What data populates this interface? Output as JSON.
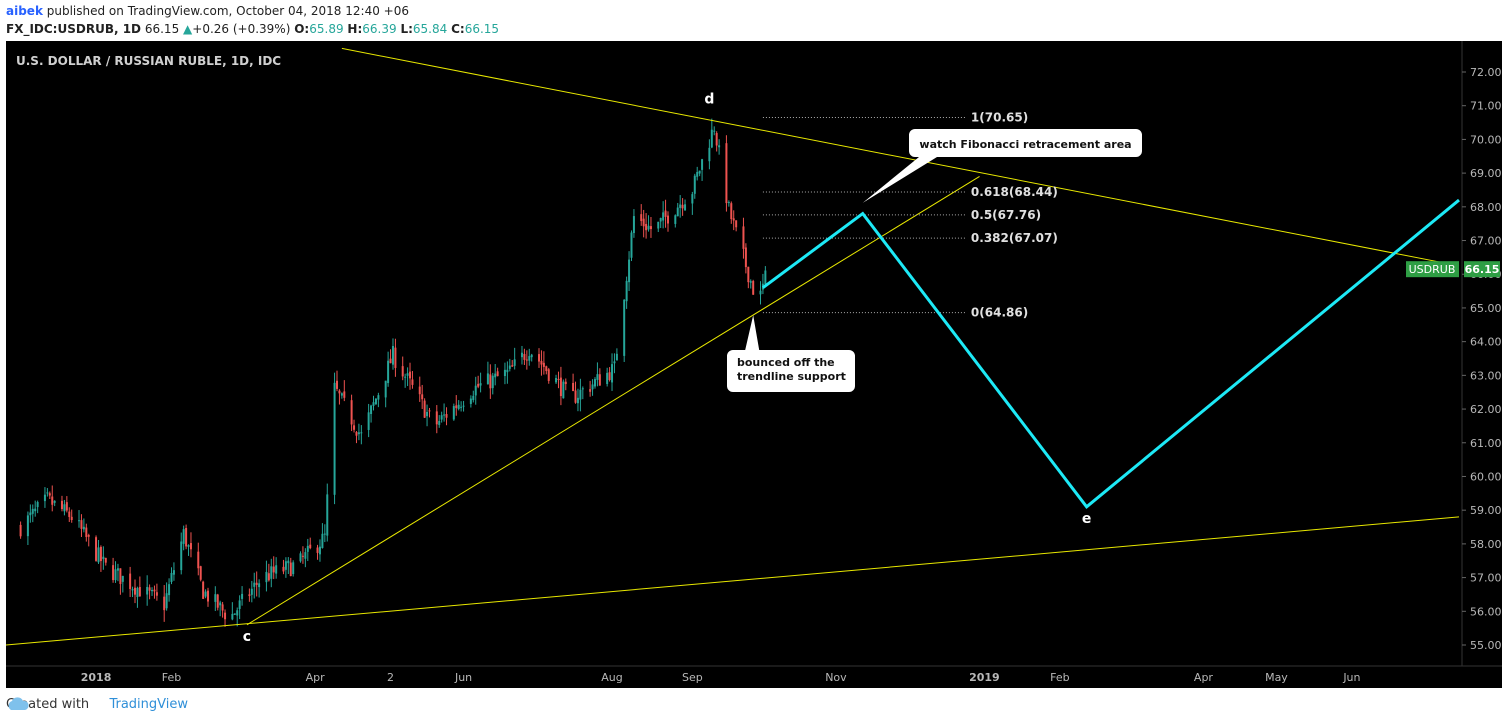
{
  "header": {
    "user": "aibek",
    "published": "published on TradingView.com, October 04, 2018 12:40 +06",
    "symbol": "FX_IDC:USDRUB, 1D",
    "last": "66.15",
    "change": "+0.26 (+0.39%)",
    "o_label": "O:",
    "o_value": "65.89",
    "h_label": "H:",
    "h_value": "66.39",
    "l_label": "L:",
    "l_value": "65.84",
    "c_label": "C:",
    "c_value": "66.15"
  },
  "footer": {
    "created": "Created with",
    "brand": "TradingView"
  },
  "colors": {
    "up": "#26a69a",
    "down": "#ef5350",
    "trend": "#e8e800",
    "projection": "#1de9f6",
    "background": "#000000"
  },
  "chart_data": {
    "type": "candlestick",
    "title": "U.S. DOLLAR / RUSSIAN RUBLE, 1D, IDC",
    "symbol": "USDRUB",
    "last_price_label": "66.15",
    "ylim": [
      54.6,
      72.6
    ],
    "y_ticks": [
      "72.00",
      "71.00",
      "70.00",
      "69.00",
      "68.00",
      "67.00",
      "66.00",
      "65.00",
      "64.00",
      "63.00",
      "62.00",
      "61.00",
      "60.00",
      "59.00",
      "58.00",
      "57.00",
      "56.00",
      "55.00"
    ],
    "x_ticks": [
      "2018",
      "Feb",
      "Apr",
      "2",
      "Jun",
      "Aug",
      "Sep",
      "Nov",
      "2019",
      "Feb",
      "Apr",
      "May",
      "Jun"
    ],
    "price_path": [
      {
        "date": "2017-12-01",
        "price": 58.5
      },
      {
        "date": "2017-12-12",
        "price": 59.3
      },
      {
        "date": "2017-12-22",
        "price": 58.8
      },
      {
        "date": "2018-01-05",
        "price": 57.3
      },
      {
        "date": "2018-01-20",
        "price": 56.6
      },
      {
        "date": "2018-01-29",
        "price": 56.2
      },
      {
        "date": "2018-02-06",
        "price": 58.3
      },
      {
        "date": "2018-02-14",
        "price": 56.6
      },
      {
        "date": "2018-02-25",
        "price": 55.8
      },
      {
        "date": "2018-03-10",
        "price": 57.0
      },
      {
        "date": "2018-03-25",
        "price": 57.4
      },
      {
        "date": "2018-04-05",
        "price": 58.2
      },
      {
        "date": "2018-04-09",
        "price": 62.6
      },
      {
        "date": "2018-04-20",
        "price": 61.2
      },
      {
        "date": "2018-05-03",
        "price": 63.6
      },
      {
        "date": "2018-05-20",
        "price": 61.5
      },
      {
        "date": "2018-06-05",
        "price": 62.6
      },
      {
        "date": "2018-06-20",
        "price": 63.1
      },
      {
        "date": "2018-06-28",
        "price": 63.8
      },
      {
        "date": "2018-07-15",
        "price": 62.3
      },
      {
        "date": "2018-07-25",
        "price": 62.8
      },
      {
        "date": "2018-08-02",
        "price": 63.2
      },
      {
        "date": "2018-08-10",
        "price": 67.7
      },
      {
        "date": "2018-08-18",
        "price": 67.3
      },
      {
        "date": "2018-09-03",
        "price": 68.5
      },
      {
        "date": "2018-09-12",
        "price": 70.4
      },
      {
        "date": "2018-09-18",
        "price": 67.9
      },
      {
        "date": "2018-09-30",
        "price": 65.1
      },
      {
        "date": "2018-10-04",
        "price": 66.15
      }
    ],
    "wave_labels": [
      {
        "label": "c",
        "date": "2018-03-04",
        "price": 55.6
      },
      {
        "label": "d",
        "date": "2018-09-10",
        "price": 70.65
      },
      {
        "label": "e",
        "date": "2019-02-12",
        "price": 59.1
      }
    ],
    "fibonacci": [
      {
        "label": "1(70.65)",
        "price": 70.65
      },
      {
        "label": "0.618(68.44)",
        "price": 68.44
      },
      {
        "label": "0.5(67.76)",
        "price": 67.76
      },
      {
        "label": "0.382(67.07)",
        "price": 67.07
      },
      {
        "label": "0(64.86)",
        "price": 64.86
      }
    ],
    "trendlines": [
      {
        "name": "upper",
        "from": {
          "date": "2018-04-12",
          "price": 72.7
        },
        "to": {
          "date": "2019-07-15",
          "price": 66.25
        }
      },
      {
        "name": "lower",
        "from": {
          "date": "2017-11-25",
          "price": 55.0
        },
        "to": {
          "date": "2019-07-15",
          "price": 58.8
        }
      },
      {
        "name": "support",
        "from": {
          "date": "2018-03-04",
          "price": 55.6
        },
        "to": {
          "date": "2018-12-30",
          "price": 68.9
        }
      }
    ],
    "projection": [
      {
        "date": "2018-10-02",
        "price": 65.6
      },
      {
        "date": "2018-11-12",
        "price": 67.8
      },
      {
        "date": "2019-02-12",
        "price": 59.1
      },
      {
        "date": "2019-07-15",
        "price": 68.2
      }
    ],
    "annotations": [
      {
        "text": "watch Fibonacci retracement area",
        "pointer": {
          "date": "2018-11-12",
          "price": 68.0
        }
      },
      {
        "text": "bounced off the\ntrendline support",
        "pointer": {
          "date": "2018-09-28",
          "price": 64.9
        }
      }
    ]
  }
}
